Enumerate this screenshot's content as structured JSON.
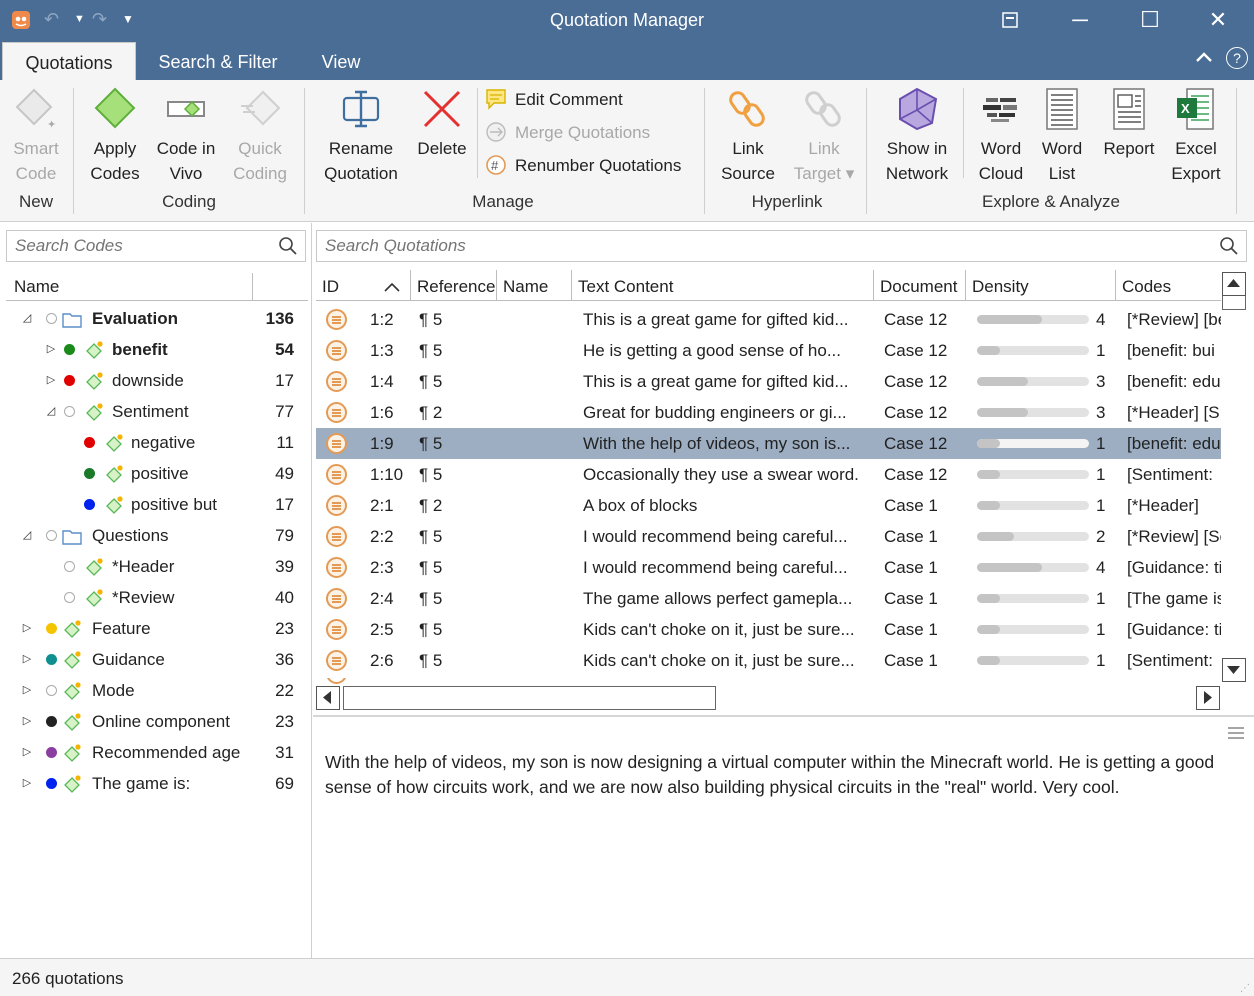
{
  "window": {
    "title": "Quotation Manager",
    "controls": {
      "minimize": "─",
      "maximize": "☐",
      "close": "✕"
    }
  },
  "tabs": [
    {
      "label": "Quotations",
      "active": true
    },
    {
      "label": "Search & Filter",
      "active": false
    },
    {
      "label": "View",
      "active": false
    }
  ],
  "ribbon": {
    "groups": {
      "new": "New",
      "coding": "Coding",
      "manage": "Manage",
      "hyperlink": "Hyperlink",
      "explore": "Explore & Analyze"
    },
    "buttons": {
      "smart_code": "Smart\nCode",
      "apply_codes": "Apply\nCodes",
      "code_in_vivo": "Code in\nVivo",
      "quick_coding": "Quick\nCoding",
      "rename_quotation": "Rename\nQuotation",
      "delete": "Delete",
      "edit_comment": "Edit Comment",
      "merge_quotations": "Merge Quotations",
      "renumber_quotations": "Renumber Quotations",
      "link_source": "Link\nSource",
      "link_target": "Link\nTarget ▾",
      "show_in_network": "Show in\nNetwork",
      "word_cloud": "Word\nCloud",
      "word_list": "Word\nList",
      "report": "Report",
      "excel_export": "Excel\nExport"
    }
  },
  "codes_panel": {
    "search_placeholder": "Search Codes",
    "header_name": "Name",
    "items": [
      {
        "name": "Evaluation",
        "count": "136",
        "level": 0,
        "expand": "◿",
        "dot": "empty",
        "icon": "folder",
        "bold": true
      },
      {
        "name": "benefit",
        "count": "54",
        "level": 1,
        "expand": "▷",
        "dot": "#1a8a1a",
        "icon": "code",
        "bold": true
      },
      {
        "name": "downside",
        "count": "17",
        "level": 1,
        "expand": "▷",
        "dot": "#e00000",
        "icon": "code",
        "bold": false
      },
      {
        "name": "Sentiment",
        "count": "77",
        "level": 1,
        "expand": "◿",
        "dot": "empty",
        "icon": "code",
        "bold": false
      },
      {
        "name": "negative",
        "count": "11",
        "level": 2,
        "expand": "",
        "dot": "#e00000",
        "icon": "code",
        "bold": false
      },
      {
        "name": "positive",
        "count": "49",
        "level": 2,
        "expand": "",
        "dot": "#1a7a2a",
        "icon": "code",
        "bold": false
      },
      {
        "name": "positive but",
        "count": "17",
        "level": 2,
        "expand": "",
        "dot": "#0022ee",
        "icon": "code",
        "bold": false
      },
      {
        "name": "Questions",
        "count": "79",
        "level": 0,
        "expand": "◿",
        "dot": "empty",
        "icon": "folder",
        "bold": false
      },
      {
        "name": "*Header",
        "count": "39",
        "level": 1,
        "expand": "",
        "dot": "empty",
        "icon": "code",
        "bold": false
      },
      {
        "name": "*Review",
        "count": "40",
        "level": 1,
        "expand": "",
        "dot": "empty",
        "icon": "code",
        "bold": false
      },
      {
        "name": "Feature",
        "count": "23",
        "level": 0,
        "expand": "▷",
        "dot": "#f5c400",
        "icon": "code",
        "bold": false
      },
      {
        "name": "Guidance",
        "count": "36",
        "level": 0,
        "expand": "▷",
        "dot": "#0f8f8f",
        "icon": "code",
        "bold": false
      },
      {
        "name": "Mode",
        "count": "22",
        "level": 0,
        "expand": "▷",
        "dot": "empty",
        "icon": "code",
        "bold": false
      },
      {
        "name": "Online component",
        "count": "23",
        "level": 0,
        "expand": "▷",
        "dot": "#222222",
        "icon": "code",
        "bold": false
      },
      {
        "name": "Recommended age",
        "count": "31",
        "level": 0,
        "expand": "▷",
        "dot": "#8a3fa0",
        "icon": "code",
        "bold": false
      },
      {
        "name": "The game is:",
        "count": "69",
        "level": 0,
        "expand": "▷",
        "dot": "#0022ee",
        "icon": "code",
        "bold": false
      }
    ]
  },
  "quotations_panel": {
    "search_placeholder": "Search Quotations",
    "columns": [
      "ID",
      "Reference",
      "Name",
      "Text Content",
      "Document",
      "Density",
      "Codes"
    ],
    "rows": [
      {
        "id": "1:2",
        "ref": "¶ 5",
        "name": "",
        "text": "This is a great game for gifted kid...",
        "doc": "Case 12",
        "density": 4,
        "codes": "[*Review] [be",
        "selected": false
      },
      {
        "id": "1:3",
        "ref": "¶ 5",
        "name": "",
        "text": "He is getting a good sense of ho...",
        "doc": "Case 12",
        "density": 1,
        "codes": "[benefit: bui",
        "selected": false
      },
      {
        "id": "1:4",
        "ref": "¶ 5",
        "name": "",
        "text": "This is a great game for gifted kid...",
        "doc": "Case 12",
        "density": 3,
        "codes": "[benefit: edu",
        "selected": false
      },
      {
        "id": "1:6",
        "ref": "¶ 2",
        "name": "",
        "text": "Great for budding engineers or gi...",
        "doc": "Case 12",
        "density": 3,
        "codes": "[*Header] [S",
        "selected": false
      },
      {
        "id": "1:9",
        "ref": "¶ 5",
        "name": "",
        "text": "With the help of videos, my son is...",
        "doc": "Case 12",
        "density": 1,
        "codes": "[benefit: edu",
        "selected": true
      },
      {
        "id": "1:10",
        "ref": "¶ 5",
        "name": "",
        "text": "Occasionally they use a swear word.",
        "doc": "Case 12",
        "density": 1,
        "codes": "[Sentiment:",
        "selected": false
      },
      {
        "id": "2:1",
        "ref": "¶ 2",
        "name": "",
        "text": "A box of blocks",
        "doc": "Case 1",
        "density": 1,
        "codes": "[*Header]",
        "selected": false
      },
      {
        "id": "2:2",
        "ref": "¶ 5",
        "name": "",
        "text": "I would recommend being careful...",
        "doc": "Case 1",
        "density": 2,
        "codes": "[*Review] [Se",
        "selected": false
      },
      {
        "id": "2:3",
        "ref": "¶ 5",
        "name": "",
        "text": "I would recommend being careful...",
        "doc": "Case 1",
        "density": 4,
        "codes": "[Guidance: ti",
        "selected": false
      },
      {
        "id": "2:4",
        "ref": "¶ 5",
        "name": "",
        "text": "The game allows perfect gamepla...",
        "doc": "Case 1",
        "density": 1,
        "codes": "[The game is",
        "selected": false
      },
      {
        "id": "2:5",
        "ref": "¶ 5",
        "name": "",
        "text": "Kids can't choke on it, just be sure...",
        "doc": "Case 1",
        "density": 1,
        "codes": "[Guidance: ti",
        "selected": false
      },
      {
        "id": "2:6",
        "ref": "¶ 5",
        "name": "",
        "text": "Kids can't choke on it, just be sure...",
        "doc": "Case 1",
        "density": 1,
        "codes": "[Sentiment:",
        "selected": false
      }
    ]
  },
  "preview": {
    "text": "With the help of videos, my son is now designing a virtual computer within the Minecraft world. He is getting a good sense of how circuits work, and we are now also building physical circuits in the \"real\" world. Very cool."
  },
  "status": {
    "text": "266 quotations"
  },
  "colors": {
    "title_bar": "#4a6d96",
    "selection": "#9daec2",
    "quotation_icon": "#e39a55",
    "code_icon": "#57b857"
  }
}
